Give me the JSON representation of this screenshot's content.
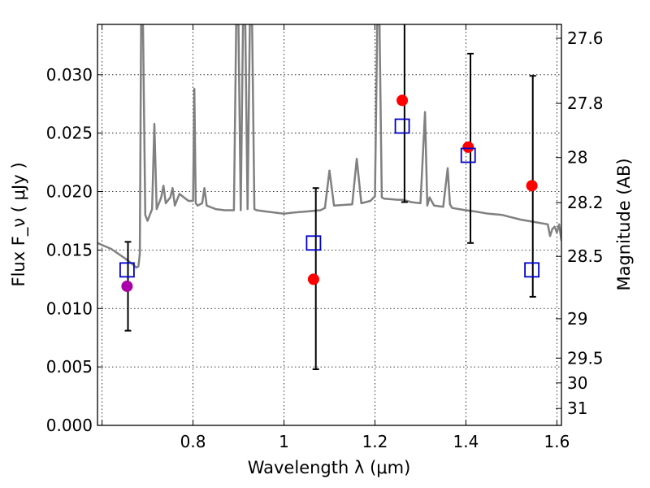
{
  "chart_data": {
    "type": "scatter",
    "xlabel": "Wavelength  λ (μm)",
    "ylabel": "Flux  F_ν  ( μJy )",
    "ylabel_right": "Magnitude (AB)",
    "xlim": [
      0.59,
      1.61
    ],
    "ylim": [
      0.0,
      0.0343
    ],
    "grid": true,
    "x_ticks": [
      {
        "value": 0.6,
        "label": ""
      },
      {
        "value": 0.8,
        "label": "0.8"
      },
      {
        "value": 1.0,
        "label": "1"
      },
      {
        "value": 1.2,
        "label": "1.2"
      },
      {
        "value": 1.4,
        "label": "1.4"
      },
      {
        "value": 1.6,
        "label": "1.6"
      }
    ],
    "y_ticks": [
      {
        "value": 0.0,
        "label": "0.000"
      },
      {
        "value": 0.005,
        "label": "0.005"
      },
      {
        "value": 0.01,
        "label": "0.010"
      },
      {
        "value": 0.015,
        "label": "0.015"
      },
      {
        "value": 0.02,
        "label": "0.020"
      },
      {
        "value": 0.025,
        "label": "0.025"
      },
      {
        "value": 0.03,
        "label": "0.030"
      }
    ],
    "mag_ticks": [
      {
        "value": 27.6,
        "label": "27.6"
      },
      {
        "value": 27.8,
        "label": "27.8"
      },
      {
        "value": 28.0,
        "label": "28"
      },
      {
        "value": 28.2,
        "label": "28.2"
      },
      {
        "value": 28.5,
        "label": "28.5"
      },
      {
        "value": 29.0,
        "label": "29"
      },
      {
        "value": 29.5,
        "label": "29.5"
      },
      {
        "value": 30.0,
        "label": "30"
      },
      {
        "value": 31.0,
        "label": "31"
      }
    ],
    "series": [
      {
        "kind": "template_spectrum",
        "color": "#808080",
        "x": [
          0.59,
          0.62,
          0.65,
          0.67,
          0.675,
          0.68,
          0.683,
          0.686,
          0.69,
          0.695,
          0.7,
          0.71,
          0.715,
          0.72,
          0.73,
          0.735,
          0.74,
          0.75,
          0.755,
          0.76,
          0.77,
          0.78,
          0.79,
          0.8,
          0.803,
          0.806,
          0.81,
          0.82,
          0.825,
          0.83,
          0.85,
          0.87,
          0.89,
          0.895,
          0.9,
          0.905,
          0.91,
          0.915,
          0.92,
          0.925,
          0.93,
          0.935,
          0.94,
          0.96,
          0.98,
          1.0,
          1.02,
          1.05,
          1.08,
          1.09,
          1.1,
          1.11,
          1.15,
          1.16,
          1.17,
          1.18,
          1.19,
          1.2,
          1.205,
          1.21,
          1.215,
          1.22,
          1.25,
          1.26,
          1.27,
          1.28,
          1.3,
          1.31,
          1.315,
          1.32,
          1.33,
          1.35,
          1.36,
          1.365,
          1.37,
          1.4,
          1.42,
          1.45,
          1.48,
          1.5,
          1.52,
          1.55,
          1.58,
          1.585,
          1.59,
          1.595,
          1.6,
          1.605,
          1.61
        ],
        "y": [
          0.0156,
          0.0151,
          0.0143,
          0.0137,
          0.0135,
          0.0136,
          0.0147,
          0.0343,
          0.0343,
          0.018,
          0.0175,
          0.0185,
          0.0258,
          0.0185,
          0.0195,
          0.0205,
          0.019,
          0.0195,
          0.0203,
          0.0188,
          0.0198,
          0.0195,
          0.0192,
          0.0192,
          0.0288,
          0.019,
          0.0188,
          0.019,
          0.0203,
          0.0188,
          0.0185,
          0.0184,
          0.0184,
          0.0343,
          0.0343,
          0.0184,
          0.0343,
          0.0343,
          0.0185,
          0.0343,
          0.0343,
          0.0185,
          0.0184,
          0.0183,
          0.0182,
          0.0181,
          0.0182,
          0.0183,
          0.0184,
          0.0186,
          0.0218,
          0.0188,
          0.0189,
          0.0228,
          0.019,
          0.0191,
          0.0192,
          0.0196,
          0.0343,
          0.0343,
          0.0195,
          0.0194,
          0.0193,
          0.0193,
          0.0192,
          0.0191,
          0.019,
          0.0268,
          0.0188,
          0.0195,
          0.0188,
          0.0187,
          0.022,
          0.0189,
          0.0186,
          0.0184,
          0.0183,
          0.0181,
          0.018,
          0.0178,
          0.0176,
          0.0174,
          0.0172,
          0.0162,
          0.0168,
          0.017,
          0.0165,
          0.0172,
          0.0158
        ]
      },
      {
        "kind": "observed",
        "color": "#ff0000",
        "x": [
          1.065,
          1.26,
          1.405,
          1.545
        ],
        "y": [
          0.0125,
          0.0278,
          0.0238,
          0.0205
        ]
      },
      {
        "kind": "observed_limit",
        "color": "#aa00aa",
        "x": [
          0.655
        ],
        "y": [
          0.0119
        ]
      },
      {
        "kind": "model_photometry",
        "color": "#0000cc",
        "x": [
          0.655,
          1.065,
          1.26,
          1.405,
          1.545
        ],
        "y": [
          0.0133,
          0.0156,
          0.0256,
          0.0231,
          0.0133
        ]
      }
    ],
    "error_bars": [
      {
        "x": 0.657,
        "low": 0.0081,
        "high": 0.0157
      },
      {
        "x": 1.07,
        "low": 0.0048,
        "high": 0.0203
      },
      {
        "x": 1.265,
        "low": 0.0191,
        "high": 0.0343
      },
      {
        "x": 1.41,
        "low": 0.0156,
        "high": 0.0318
      },
      {
        "x": 1.547,
        "low": 0.011,
        "high": 0.0299
      }
    ]
  }
}
